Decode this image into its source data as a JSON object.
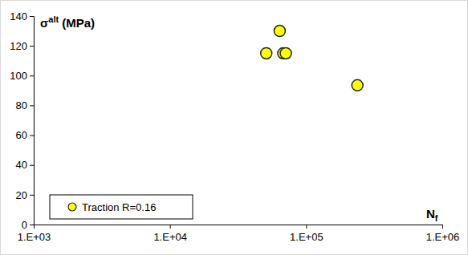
{
  "chart_data": {
    "type": "scatter",
    "x_label": "Nf",
    "y_label": "σalt (MPa)",
    "series": [
      {
        "name": "Traction R=0.16",
        "color": "#ffff00",
        "marker": "circle",
        "x": [
          51000,
          64000,
          68000,
          71000,
          238000
        ],
        "values": [
          115,
          130,
          115,
          115,
          93.5
        ]
      }
    ],
    "xlim": [
      1000,
      1000000
    ],
    "xticks": [
      {
        "value": 1000,
        "label": "1.E+03"
      },
      {
        "value": 10000,
        "label": "1.E+04"
      },
      {
        "value": 100000,
        "label": "1.E+05"
      },
      {
        "value": 1000000,
        "label": "1.E+06"
      }
    ],
    "ylim": [
      0,
      140
    ],
    "yticks": [
      0,
      20,
      40,
      60,
      80,
      100,
      120,
      140
    ],
    "log": "x",
    "grid": false,
    "legend": "lower left"
  }
}
